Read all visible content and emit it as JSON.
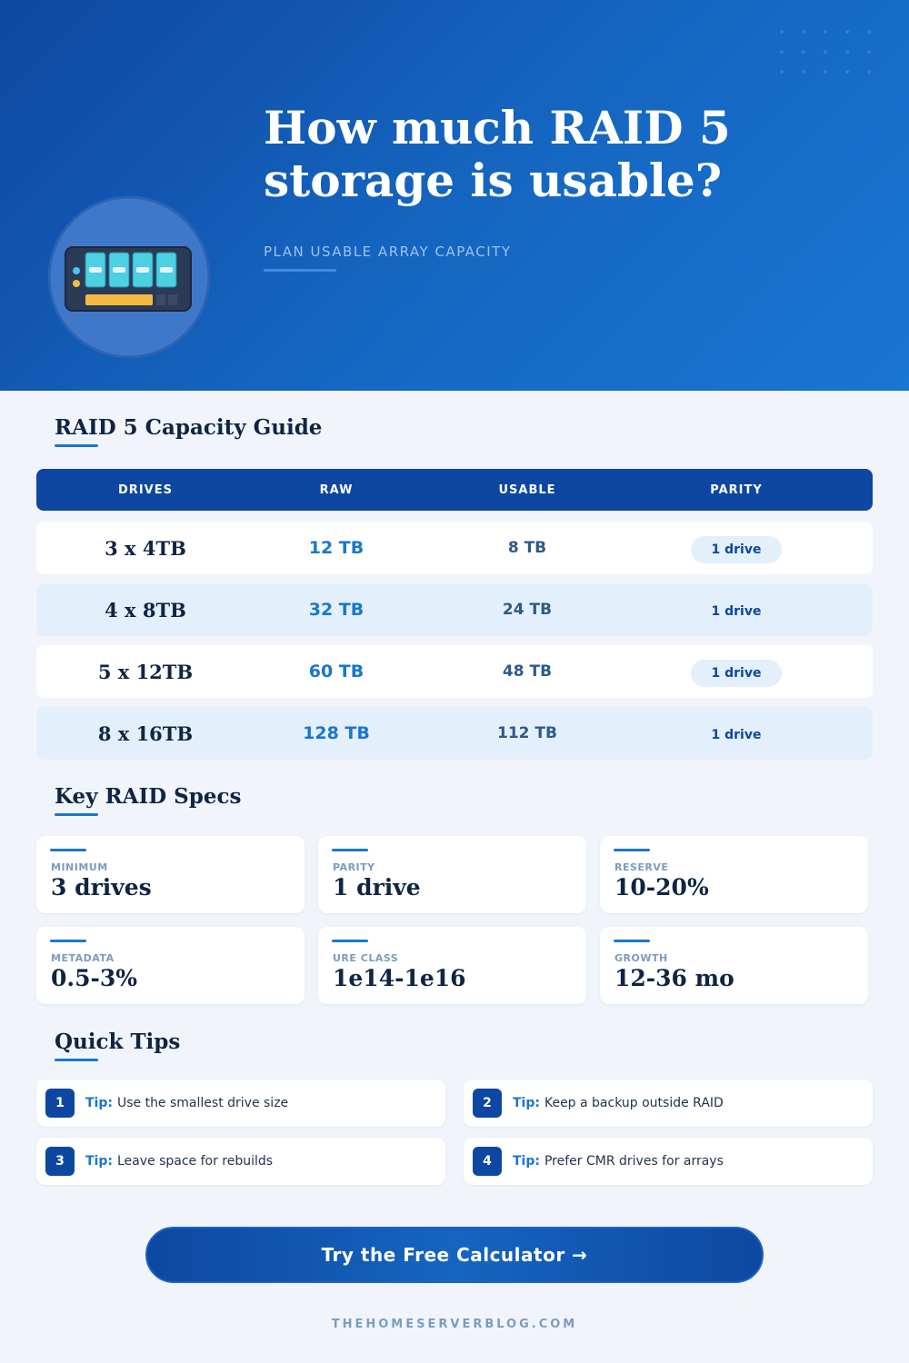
{
  "header": {
    "title": "How much RAID 5 storage is usable?",
    "subtitle": "PLAN USABLE ARRAY CAPACITY"
  },
  "guide": {
    "heading": "RAID 5 Capacity Guide",
    "columns": [
      "DRIVES",
      "RAW",
      "USABLE",
      "PARITY"
    ],
    "rows": [
      [
        "3 x 4TB",
        "12 TB",
        "8 TB",
        "1 drive"
      ],
      [
        "4 x 8TB",
        "32 TB",
        "24 TB",
        "1 drive"
      ],
      [
        "5 x 12TB",
        "60 TB",
        "48 TB",
        "1 drive"
      ],
      [
        "8 x 16TB",
        "128 TB",
        "112 TB",
        "1 drive"
      ]
    ]
  },
  "specs": {
    "heading": "Key RAID Specs",
    "items": [
      {
        "label": "MINIMUM",
        "value": "3 drives"
      },
      {
        "label": "PARITY",
        "value": "1 drive"
      },
      {
        "label": "RESERVE",
        "value": "10-20%"
      },
      {
        "label": "METADATA",
        "value": "0.5-3%"
      },
      {
        "label": "URE CLASS",
        "value": "1e14-1e16"
      },
      {
        "label": "GROWTH",
        "value": "12-36 mo"
      }
    ]
  },
  "tips": {
    "heading": "Quick Tips",
    "items": [
      {
        "number": "1",
        "label": "Tip:",
        "text": "Use the smallest drive size"
      },
      {
        "number": "2",
        "label": "Tip:",
        "text": "Keep a backup outside RAID"
      },
      {
        "number": "3",
        "label": "Tip:",
        "text": "Leave space for rebuilds"
      },
      {
        "number": "4",
        "label": "Tip:",
        "text": "Prefer CMR drives for arrays"
      }
    ]
  },
  "cta": "Try the Free Calculator →",
  "footer": "THEHOMESERVERBLOG.COM"
}
